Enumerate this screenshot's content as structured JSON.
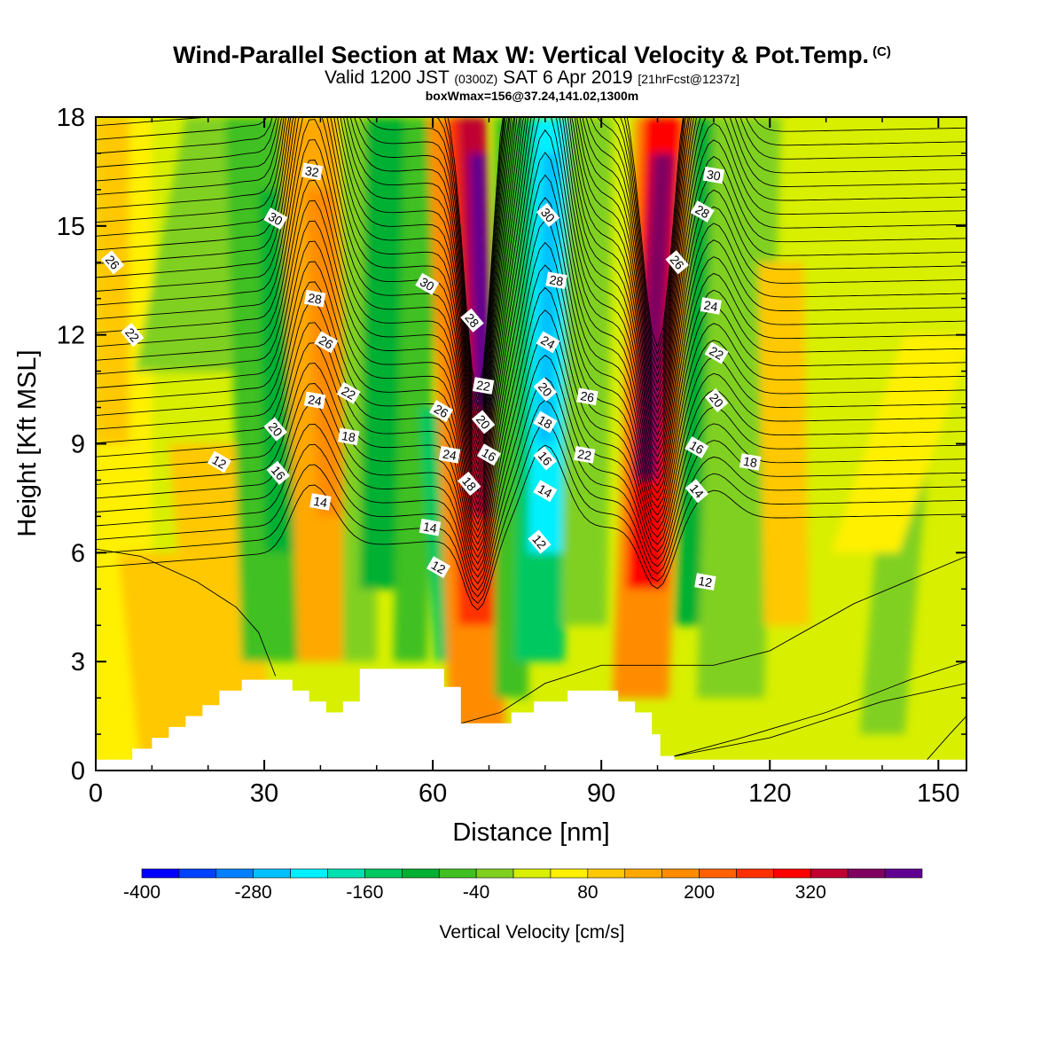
{
  "header": {
    "title": "Wind-Parallel Section at Max W: Vertical Velocity & Pot.Temp.",
    "copyright": "(C)",
    "valid_prefix": "Valid 1200 JST",
    "valid_utc": "(0300Z)",
    "valid_date": "SAT 6 Apr 2019",
    "forecast": "[21hrFcst@1237z]",
    "box_info": "boxWmax=156@37.24,141.02,1300m"
  },
  "chart_data": {
    "type": "heatmap",
    "xlabel": "Distance [nm]",
    "ylabel": "Height [Kft MSL]",
    "xlim": [
      0,
      155
    ],
    "ylim": [
      0,
      18
    ],
    "x_ticks": [
      "0",
      "30",
      "60",
      "90",
      "120",
      "150"
    ],
    "y_ticks": [
      "0",
      "3",
      "6",
      "9",
      "12",
      "15",
      "18"
    ],
    "colorbar": {
      "label": "Vertical Velocity [cm/s]",
      "tick_labels": [
        "-400",
        "-280",
        "-160",
        "-40",
        "80",
        "200",
        "320"
      ],
      "levels": [
        -400,
        -360,
        -320,
        -280,
        -240,
        -200,
        -160,
        -120,
        -80,
        -40,
        0,
        40,
        80,
        120,
        160,
        200,
        240,
        280,
        320,
        360,
        400
      ],
      "colors": [
        "#0000ff",
        "#0040ff",
        "#0080ff",
        "#00c0ff",
        "#00f0ff",
        "#00e0b0",
        "#00c860",
        "#00b030",
        "#40c020",
        "#80d020",
        "#d8ef00",
        "#fff000",
        "#ffc800",
        "#ffa800",
        "#ff8c00",
        "#ff6000",
        "#ff3000",
        "#ff0000",
        "#c00030",
        "#800060",
        "#600090"
      ]
    },
    "updraft_cores_x_nm": [
      67,
      100
    ],
    "downdraft_core_x_nm": 80,
    "terrain": [
      {
        "x": 0,
        "h": 0.3
      },
      {
        "x": 6,
        "h": 0.3
      },
      {
        "x": 6.5,
        "h": 0.6
      },
      {
        "x": 10,
        "h": 0.9
      },
      {
        "x": 13,
        "h": 1.2
      },
      {
        "x": 16,
        "h": 1.5
      },
      {
        "x": 19,
        "h": 1.8
      },
      {
        "x": 22,
        "h": 2.2
      },
      {
        "x": 26,
        "h": 2.5
      },
      {
        "x": 32,
        "h": 2.5
      },
      {
        "x": 35,
        "h": 2.2
      },
      {
        "x": 38,
        "h": 1.9
      },
      {
        "x": 41,
        "h": 1.6
      },
      {
        "x": 44,
        "h": 1.9
      },
      {
        "x": 47,
        "h": 2.8
      },
      {
        "x": 55,
        "h": 2.8
      },
      {
        "x": 60,
        "h": 2.8
      },
      {
        "x": 62,
        "h": 2.3
      },
      {
        "x": 65,
        "h": 1.3
      },
      {
        "x": 71,
        "h": 1.3
      },
      {
        "x": 74,
        "h": 1.6
      },
      {
        "x": 78,
        "h": 1.9
      },
      {
        "x": 84,
        "h": 2.2
      },
      {
        "x": 90,
        "h": 2.2
      },
      {
        "x": 93,
        "h": 1.9
      },
      {
        "x": 96,
        "h": 1.6
      },
      {
        "x": 99,
        "h": 1.0
      },
      {
        "x": 100.5,
        "h": 0.4
      },
      {
        "x": 103,
        "h": 0.3
      },
      {
        "x": 155,
        "h": 0.3
      }
    ],
    "isentrope_labels": [
      {
        "text": "32",
        "x": 38.5,
        "y": 16.5
      },
      {
        "text": "30",
        "x": 32,
        "y": 15.2
      },
      {
        "text": "26",
        "x": 3,
        "y": 14.0
      },
      {
        "text": "28",
        "x": 39,
        "y": 13.0
      },
      {
        "text": "26",
        "x": 41,
        "y": 11.8
      },
      {
        "text": "22",
        "x": 6.5,
        "y": 12.0
      },
      {
        "text": "24",
        "x": 39,
        "y": 10.2
      },
      {
        "text": "22",
        "x": 45,
        "y": 10.4
      },
      {
        "text": "20",
        "x": 32,
        "y": 9.4
      },
      {
        "text": "18",
        "x": 45,
        "y": 9.2
      },
      {
        "text": "12",
        "x": 22,
        "y": 8.5
      },
      {
        "text": "16",
        "x": 32.5,
        "y": 8.2
      },
      {
        "text": "14",
        "x": 40,
        "y": 7.4
      },
      {
        "text": "30",
        "x": 59,
        "y": 13.4
      },
      {
        "text": "28",
        "x": 67,
        "y": 12.4
      },
      {
        "text": "22",
        "x": 69,
        "y": 10.6
      },
      {
        "text": "26",
        "x": 61.5,
        "y": 9.9
      },
      {
        "text": "20",
        "x": 69,
        "y": 9.6
      },
      {
        "text": "24",
        "x": 63,
        "y": 8.7
      },
      {
        "text": "16",
        "x": 70,
        "y": 8.7
      },
      {
        "text": "18",
        "x": 66.5,
        "y": 7.9
      },
      {
        "text": "14",
        "x": 59.5,
        "y": 6.7
      },
      {
        "text": "12",
        "x": 61,
        "y": 5.6
      },
      {
        "text": "30",
        "x": 80.5,
        "y": 15.3
      },
      {
        "text": "28",
        "x": 82,
        "y": 13.5
      },
      {
        "text": "24",
        "x": 80.5,
        "y": 11.8
      },
      {
        "text": "20",
        "x": 80,
        "y": 10.5
      },
      {
        "text": "26",
        "x": 87.5,
        "y": 10.3
      },
      {
        "text": "18",
        "x": 80,
        "y": 9.6
      },
      {
        "text": "16",
        "x": 80,
        "y": 8.6
      },
      {
        "text": "22",
        "x": 87,
        "y": 8.7
      },
      {
        "text": "14",
        "x": 80,
        "y": 7.7
      },
      {
        "text": "12",
        "x": 79,
        "y": 6.3
      },
      {
        "text": "30",
        "x": 110,
        "y": 16.4
      },
      {
        "text": "28",
        "x": 108,
        "y": 15.4
      },
      {
        "text": "26",
        "x": 103.5,
        "y": 14.0
      },
      {
        "text": "24",
        "x": 109.5,
        "y": 12.8
      },
      {
        "text": "22",
        "x": 110.5,
        "y": 11.5
      },
      {
        "text": "20",
        "x": 110.5,
        "y": 10.2
      },
      {
        "text": "18",
        "x": 116.5,
        "y": 8.5
      },
      {
        "text": "16",
        "x": 107,
        "y": 8.9
      },
      {
        "text": "14",
        "x": 107,
        "y": 7.7
      },
      {
        "text": "12",
        "x": 108.5,
        "y": 5.2
      }
    ]
  }
}
